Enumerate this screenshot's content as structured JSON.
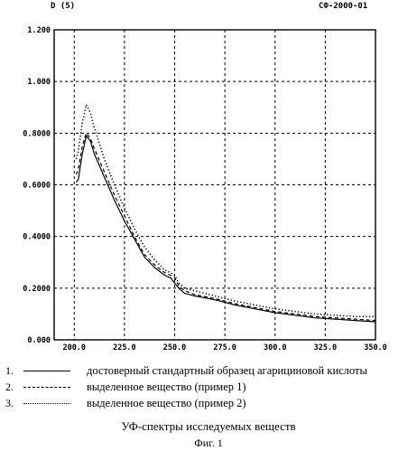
{
  "header": {
    "left": "D (5)",
    "right": "СФ-2000-01"
  },
  "chart_data": {
    "type": "line",
    "xlim": [
      190,
      350
    ],
    "ylim": [
      0,
      1.2
    ],
    "xticks": [
      {
        "v": 200,
        "label": "200.0"
      },
      {
        "v": 225,
        "label": "225.0"
      },
      {
        "v": 250,
        "label": "250.0"
      },
      {
        "v": 275,
        "label": "275.0"
      },
      {
        "v": 300,
        "label": "300.0"
      },
      {
        "v": 325,
        "label": "325.0"
      },
      {
        "v": 350,
        "label": "350.0"
      }
    ],
    "yticks": [
      {
        "v": 0,
        "label": "0.000"
      },
      {
        "v": 0.2,
        "label": "0.2000"
      },
      {
        "v": 0.4,
        "label": "0.4000"
      },
      {
        "v": 0.6,
        "label": "0.6000"
      },
      {
        "v": 0.8,
        "label": "0.8000"
      },
      {
        "v": 1.0,
        "label": "1.000"
      },
      {
        "v": 1.2,
        "label": "1.200"
      }
    ],
    "grid": true,
    "series": [
      {
        "name": "достоверный стандартный образец агарициновой кислоты",
        "style": "solid",
        "points": [
          [
            201,
            0.61
          ],
          [
            202,
            0.62
          ],
          [
            204,
            0.72
          ],
          [
            206,
            0.79
          ],
          [
            208,
            0.77
          ],
          [
            210,
            0.72
          ],
          [
            215,
            0.63
          ],
          [
            220,
            0.54
          ],
          [
            225,
            0.46
          ],
          [
            230,
            0.39
          ],
          [
            235,
            0.32
          ],
          [
            240,
            0.28
          ],
          [
            245,
            0.25
          ],
          [
            248,
            0.24
          ],
          [
            250,
            0.22
          ],
          [
            252,
            0.2
          ],
          [
            255,
            0.18
          ],
          [
            260,
            0.17
          ],
          [
            270,
            0.155
          ],
          [
            280,
            0.135
          ],
          [
            290,
            0.12
          ],
          [
            300,
            0.105
          ],
          [
            310,
            0.095
          ],
          [
            320,
            0.085
          ],
          [
            330,
            0.08
          ],
          [
            340,
            0.075
          ],
          [
            350,
            0.07
          ]
        ]
      },
      {
        "name": "выделенное вещество (пример 1)",
        "style": "dashed",
        "points": [
          [
            201,
            0.64
          ],
          [
            202,
            0.66
          ],
          [
            204,
            0.75
          ],
          [
            206,
            0.8
          ],
          [
            208,
            0.78
          ],
          [
            210,
            0.74
          ],
          [
            215,
            0.65
          ],
          [
            220,
            0.56
          ],
          [
            225,
            0.48
          ],
          [
            230,
            0.4
          ],
          [
            235,
            0.33
          ],
          [
            240,
            0.29
          ],
          [
            245,
            0.26
          ],
          [
            248,
            0.25
          ],
          [
            250,
            0.24
          ],
          [
            252,
            0.21
          ],
          [
            255,
            0.19
          ],
          [
            260,
            0.175
          ],
          [
            270,
            0.16
          ],
          [
            280,
            0.14
          ],
          [
            290,
            0.125
          ],
          [
            300,
            0.11
          ],
          [
            310,
            0.1
          ],
          [
            320,
            0.09
          ],
          [
            330,
            0.085
          ],
          [
            340,
            0.08
          ],
          [
            350,
            0.075
          ]
        ]
      },
      {
        "name": "выделенное вещество (пример 2)",
        "style": "dotted",
        "points": [
          [
            201,
            0.7
          ],
          [
            202,
            0.73
          ],
          [
            204,
            0.84
          ],
          [
            206,
            0.91
          ],
          [
            208,
            0.88
          ],
          [
            210,
            0.82
          ],
          [
            215,
            0.7
          ],
          [
            220,
            0.6
          ],
          [
            225,
            0.51
          ],
          [
            230,
            0.43
          ],
          [
            235,
            0.36
          ],
          [
            240,
            0.31
          ],
          [
            245,
            0.27
          ],
          [
            248,
            0.26
          ],
          [
            250,
            0.25
          ],
          [
            252,
            0.22
          ],
          [
            255,
            0.2
          ],
          [
            260,
            0.19
          ],
          [
            270,
            0.17
          ],
          [
            280,
            0.15
          ],
          [
            290,
            0.135
          ],
          [
            300,
            0.12
          ],
          [
            310,
            0.11
          ],
          [
            320,
            0.1
          ],
          [
            330,
            0.095
          ],
          [
            340,
            0.09
          ],
          [
            350,
            0.09
          ]
        ]
      }
    ]
  },
  "legend": [
    {
      "num": "1.",
      "text": "достоверный стандартный образец агарициновой кислоты",
      "style": "solid"
    },
    {
      "num": "2.",
      "text": "выделенное вещество (пример 1)",
      "style": "dashed"
    },
    {
      "num": "3.",
      "text": "выделенное вещество (пример 2)",
      "style": "dotted"
    }
  ],
  "caption": {
    "title": "УФ-спектры исследуемых веществ",
    "figure": "Фиг. 1"
  }
}
